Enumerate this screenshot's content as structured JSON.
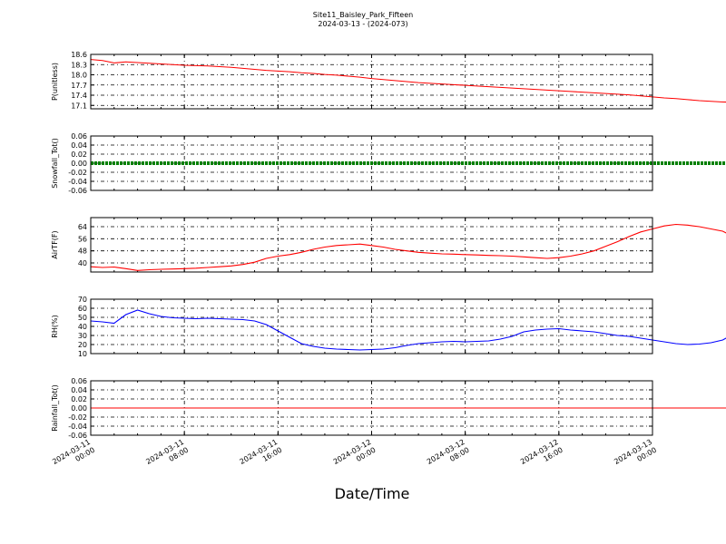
{
  "chart_data": [
    {
      "type": "line",
      "title": "Site11_Baisley_Park_Fifteen",
      "subtitle": "2024-03-13 - (2024-073)",
      "xlabel": "Date/Time",
      "ylabel": "P(unitless)",
      "ylim": [
        17.0,
        18.6
      ],
      "yticks": [
        "18.6",
        "18.3",
        "18.0",
        "17.7",
        "17.4",
        "17.1"
      ],
      "grid": true,
      "series": [
        {
          "color": "#ff0000",
          "points": [
            [
              0,
              18.45
            ],
            [
              1,
              18.42
            ],
            [
              2,
              18.35
            ],
            [
              3,
              18.38
            ],
            [
              4,
              18.36
            ],
            [
              5,
              18.34
            ],
            [
              6,
              18.32
            ],
            [
              7,
              18.3
            ],
            [
              8,
              18.28
            ],
            [
              9,
              18.27
            ],
            [
              10,
              18.26
            ],
            [
              11,
              18.24
            ],
            [
              12,
              18.22
            ],
            [
              13,
              18.19
            ],
            [
              14,
              18.16
            ],
            [
              15,
              18.13
            ],
            [
              16,
              18.11
            ],
            [
              17,
              18.09
            ],
            [
              18,
              18.06
            ],
            [
              19,
              18.04
            ],
            [
              20,
              18.01
            ],
            [
              21,
              17.99
            ],
            [
              22,
              17.96
            ],
            [
              23,
              17.93
            ],
            [
              24,
              17.89
            ],
            [
              25,
              17.86
            ],
            [
              26,
              17.83
            ],
            [
              27,
              17.8
            ],
            [
              28,
              17.77
            ],
            [
              29,
              17.75
            ],
            [
              30,
              17.73
            ],
            [
              31,
              17.71
            ],
            [
              32,
              17.69
            ],
            [
              33,
              17.67
            ],
            [
              34,
              17.65
            ],
            [
              35,
              17.63
            ],
            [
              36,
              17.61
            ],
            [
              37,
              17.59
            ],
            [
              38,
              17.57
            ],
            [
              39,
              17.55
            ],
            [
              40,
              17.53
            ],
            [
              41,
              17.51
            ],
            [
              42,
              17.49
            ],
            [
              43,
              17.47
            ],
            [
              44,
              17.45
            ],
            [
              45,
              17.43
            ],
            [
              46,
              17.41
            ],
            [
              47,
              17.38
            ],
            [
              48,
              17.35
            ],
            [
              49,
              17.32
            ],
            [
              50,
              17.3
            ],
            [
              51,
              17.27
            ],
            [
              52,
              17.24
            ],
            [
              53,
              17.22
            ],
            [
              54,
              17.2
            ],
            [
              55,
              17.19
            ],
            [
              56,
              17.18
            ]
          ]
        }
      ]
    },
    {
      "type": "line",
      "ylabel": "Snowfall_Tot()",
      "ylim": [
        -0.06,
        0.06
      ],
      "yticks": [
        "0.06",
        "0.04",
        "0.02",
        "0.00",
        "-0.02",
        "-0.04",
        "-0.06"
      ],
      "grid": true,
      "series": [
        {
          "color": "#008000",
          "style": "thick",
          "points": [
            [
              0,
              0.0
            ],
            [
              56,
              0.0
            ]
          ]
        }
      ]
    },
    {
      "type": "line",
      "ylabel": "AirTF(F)",
      "ylim": [
        34,
        70
      ],
      "yticks": [
        "64",
        "56",
        "48",
        "40"
      ],
      "grid": true,
      "series": [
        {
          "color": "#ff0000",
          "points": [
            [
              0,
              37.5
            ],
            [
              1,
              37.0
            ],
            [
              2,
              37.3
            ],
            [
              3,
              36.2
            ],
            [
              4,
              35.0
            ],
            [
              5,
              35.5
            ],
            [
              6,
              35.8
            ],
            [
              7,
              36.0
            ],
            [
              8,
              36.2
            ],
            [
              9,
              36.5
            ],
            [
              10,
              37.0
            ],
            [
              11,
              37.5
            ],
            [
              12,
              38.0
            ],
            [
              13,
              39.0
            ],
            [
              14,
              40.5
            ],
            [
              15,
              43.0
            ],
            [
              16,
              44.5
            ],
            [
              17,
              45.5
            ],
            [
              18,
              47.0
            ],
            [
              19,
              49.0
            ],
            [
              20,
              50.5
            ],
            [
              21,
              51.5
            ],
            [
              22,
              52.0
            ],
            [
              23,
              52.5
            ],
            [
              24,
              51.5
            ],
            [
              25,
              50.5
            ],
            [
              26,
              49.0
            ],
            [
              27,
              48.0
            ],
            [
              28,
              47.0
            ],
            [
              29,
              46.5
            ],
            [
              30,
              46.0
            ],
            [
              31,
              45.8
            ],
            [
              32,
              45.5
            ],
            [
              33,
              45.3
            ],
            [
              34,
              45.0
            ],
            [
              35,
              44.8
            ],
            [
              36,
              44.5
            ],
            [
              37,
              44.0
            ],
            [
              38,
              43.5
            ],
            [
              39,
              43.0
            ],
            [
              40,
              43.5
            ],
            [
              41,
              44.5
            ],
            [
              42,
              46.0
            ],
            [
              43,
              48.0
            ],
            [
              44,
              51.0
            ],
            [
              45,
              54.0
            ],
            [
              46,
              57.5
            ],
            [
              47,
              60.5
            ],
            [
              48,
              62.5
            ],
            [
              49,
              64.5
            ],
            [
              50,
              65.5
            ],
            [
              51,
              65.0
            ],
            [
              52,
              64.0
            ],
            [
              53,
              62.5
            ],
            [
              54,
              61.0
            ],
            [
              55,
              57.0
            ],
            [
              56,
              54.0
            ]
          ]
        }
      ]
    },
    {
      "type": "line",
      "ylabel": "RH(%)",
      "ylim": [
        10,
        70
      ],
      "yticks": [
        "70",
        "60",
        "50",
        "40",
        "30",
        "20",
        "10"
      ],
      "grid": true,
      "series": [
        {
          "color": "#0000ff",
          "points": [
            [
              0,
              46.0
            ],
            [
              1,
              45.0
            ],
            [
              2,
              43.5
            ],
            [
              3,
              53.0
            ],
            [
              4,
              58.0
            ],
            [
              5,
              54.0
            ],
            [
              6,
              51.0
            ],
            [
              7,
              49.5
            ],
            [
              8,
              49.0
            ],
            [
              9,
              48.5
            ],
            [
              10,
              49.0
            ],
            [
              11,
              48.5
            ],
            [
              12,
              48.0
            ],
            [
              13,
              47.5
            ],
            [
              14,
              46.0
            ],
            [
              15,
              42.0
            ],
            [
              16,
              35.0
            ],
            [
              17,
              28.0
            ],
            [
              18,
              21.0
            ],
            [
              19,
              18.0
            ],
            [
              20,
              16.0
            ],
            [
              21,
              15.0
            ],
            [
              22,
              14.5
            ],
            [
              23,
              14.0
            ],
            [
              24,
              14.5
            ],
            [
              25,
              15.0
            ],
            [
              26,
              16.5
            ],
            [
              27,
              19.0
            ],
            [
              28,
              21.0
            ],
            [
              29,
              22.0
            ],
            [
              30,
              23.0
            ],
            [
              31,
              23.5
            ],
            [
              32,
              23.0
            ],
            [
              33,
              23.5
            ],
            [
              34,
              24.0
            ],
            [
              35,
              26.0
            ],
            [
              36,
              29.0
            ],
            [
              37,
              34.0
            ],
            [
              38,
              36.0
            ],
            [
              39,
              37.0
            ],
            [
              40,
              37.5
            ],
            [
              41,
              36.0
            ],
            [
              42,
              35.0
            ],
            [
              43,
              34.0
            ],
            [
              44,
              32.0
            ],
            [
              45,
              30.0
            ],
            [
              46,
              29.0
            ],
            [
              47,
              27.0
            ],
            [
              48,
              25.0
            ],
            [
              49,
              23.0
            ],
            [
              50,
              21.0
            ],
            [
              51,
              20.0
            ],
            [
              52,
              20.5
            ],
            [
              53,
              22.0
            ],
            [
              54,
              25.0
            ],
            [
              55,
              32.0
            ],
            [
              56,
              41.0
            ]
          ]
        }
      ]
    },
    {
      "type": "line",
      "ylabel": "Rainfall_Tot()",
      "ylim": [
        -0.06,
        0.06
      ],
      "yticks": [
        "0.06",
        "0.04",
        "0.02",
        "0.00",
        "-0.02",
        "-0.04",
        "-0.06"
      ],
      "grid": true,
      "series": [
        {
          "color": "#ff0000",
          "points": [
            [
              0,
              0.0
            ],
            [
              56,
              0.0
            ]
          ]
        }
      ]
    }
  ],
  "x_tick_labels": [
    [
      "2024-03-11",
      "00:00"
    ],
    [
      "2024-03-11",
      "08:00"
    ],
    [
      "2024-03-11",
      "16:00"
    ],
    [
      "2024-03-12",
      "00:00"
    ],
    [
      "2024-03-12",
      "08:00"
    ],
    [
      "2024-03-12",
      "16:00"
    ],
    [
      "2024-03-13",
      "00:00"
    ]
  ],
  "x_range_hours": [
    0,
    48
  ]
}
